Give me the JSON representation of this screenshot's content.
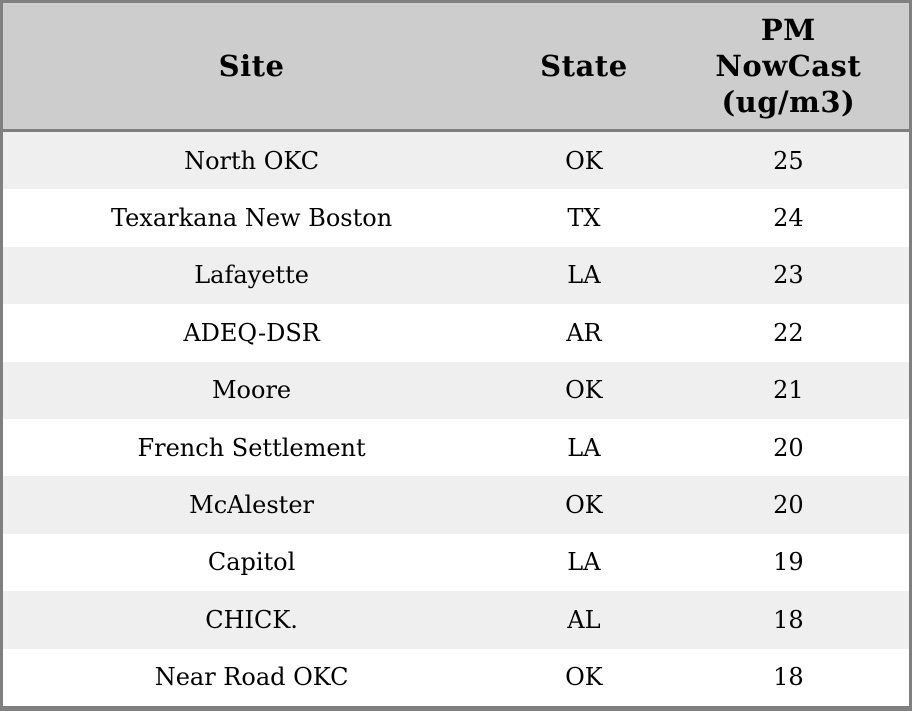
{
  "chart_data": {
    "type": "table",
    "title": "",
    "columns": [
      "Site",
      "State",
      "PM NowCast (ug/m3)"
    ],
    "rows": [
      {
        "site": "North OKC",
        "state": "OK",
        "pm_nowcast": "25"
      },
      {
        "site": "Texarkana New Boston",
        "state": "TX",
        "pm_nowcast": "24"
      },
      {
        "site": "Lafayette",
        "state": "LA",
        "pm_nowcast": "23"
      },
      {
        "site": "ADEQ-DSR",
        "state": "AR",
        "pm_nowcast": "22"
      },
      {
        "site": "Moore",
        "state": "OK",
        "pm_nowcast": "21"
      },
      {
        "site": "French Settlement",
        "state": "LA",
        "pm_nowcast": "20"
      },
      {
        "site": "McAlester",
        "state": "OK",
        "pm_nowcast": "20"
      },
      {
        "site": "Capitol",
        "state": "LA",
        "pm_nowcast": "19"
      },
      {
        "site": "CHICK.",
        "state": "AL",
        "pm_nowcast": "18"
      },
      {
        "site": "Near Road OKC",
        "state": "OK",
        "pm_nowcast": "18"
      }
    ],
    "layout": {
      "striped": true,
      "first_data_row_shaded": true,
      "header_lines_pm_column": [
        "PM",
        "NowCast",
        "(ug/m3)"
      ]
    }
  },
  "header": {
    "site_label": "Site",
    "state_label": "State",
    "pm_label": "PM NowCast (ug/m3)"
  },
  "colors": {
    "header_bg": "#cdcdcd",
    "row_bg": "#ffffff",
    "row_alt_bg": "#efefef",
    "border": "#808080",
    "text": "#000000"
  }
}
